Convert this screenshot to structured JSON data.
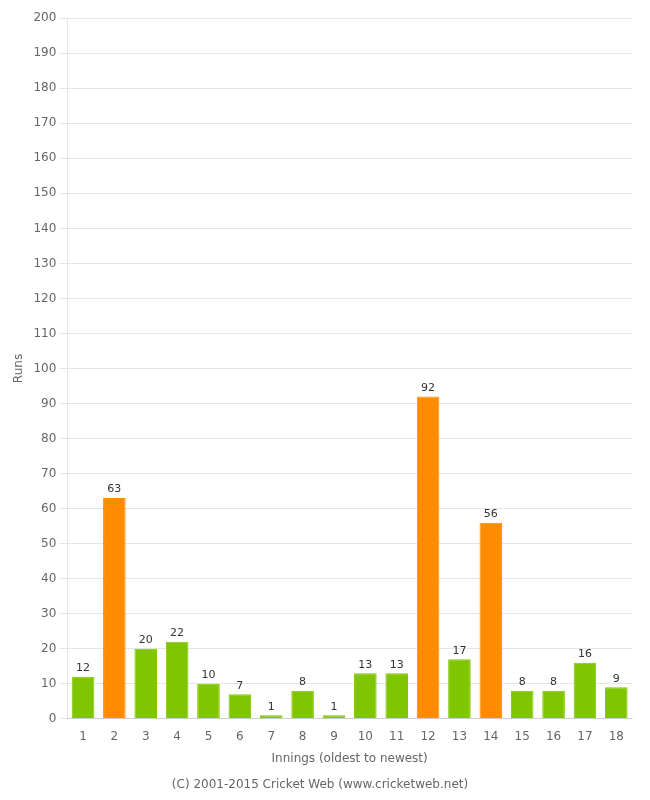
{
  "chart_data": {
    "type": "bar",
    "xlabel": "Innings (oldest to newest)",
    "ylabel": "Runs",
    "footer": "(C) 2001-2015 Cricket Web (www.cricketweb.net)",
    "categories": [
      1,
      2,
      3,
      4,
      5,
      6,
      7,
      8,
      9,
      10,
      11,
      12,
      13,
      14,
      15,
      16,
      17,
      18
    ],
    "values": [
      12,
      63,
      20,
      22,
      10,
      7,
      1,
      8,
      1,
      13,
      13,
      92,
      17,
      56,
      8,
      8,
      16,
      9
    ],
    "colors": [
      "#7fc600",
      "#ff8c00",
      "#7fc600",
      "#7fc600",
      "#7fc600",
      "#7fc600",
      "#7fc600",
      "#7fc600",
      "#7fc600",
      "#7fc600",
      "#7fc600",
      "#ff8c00",
      "#7fc600",
      "#ff8c00",
      "#7fc600",
      "#7fc600",
      "#7fc600",
      "#7fc600"
    ],
    "ylim": [
      0,
      200
    ],
    "yticks": [
      0,
      10,
      20,
      30,
      40,
      50,
      60,
      70,
      80,
      90,
      100,
      110,
      120,
      130,
      140,
      150,
      160,
      170,
      180,
      190,
      200
    ],
    "grid": true,
    "data_labels": true
  }
}
